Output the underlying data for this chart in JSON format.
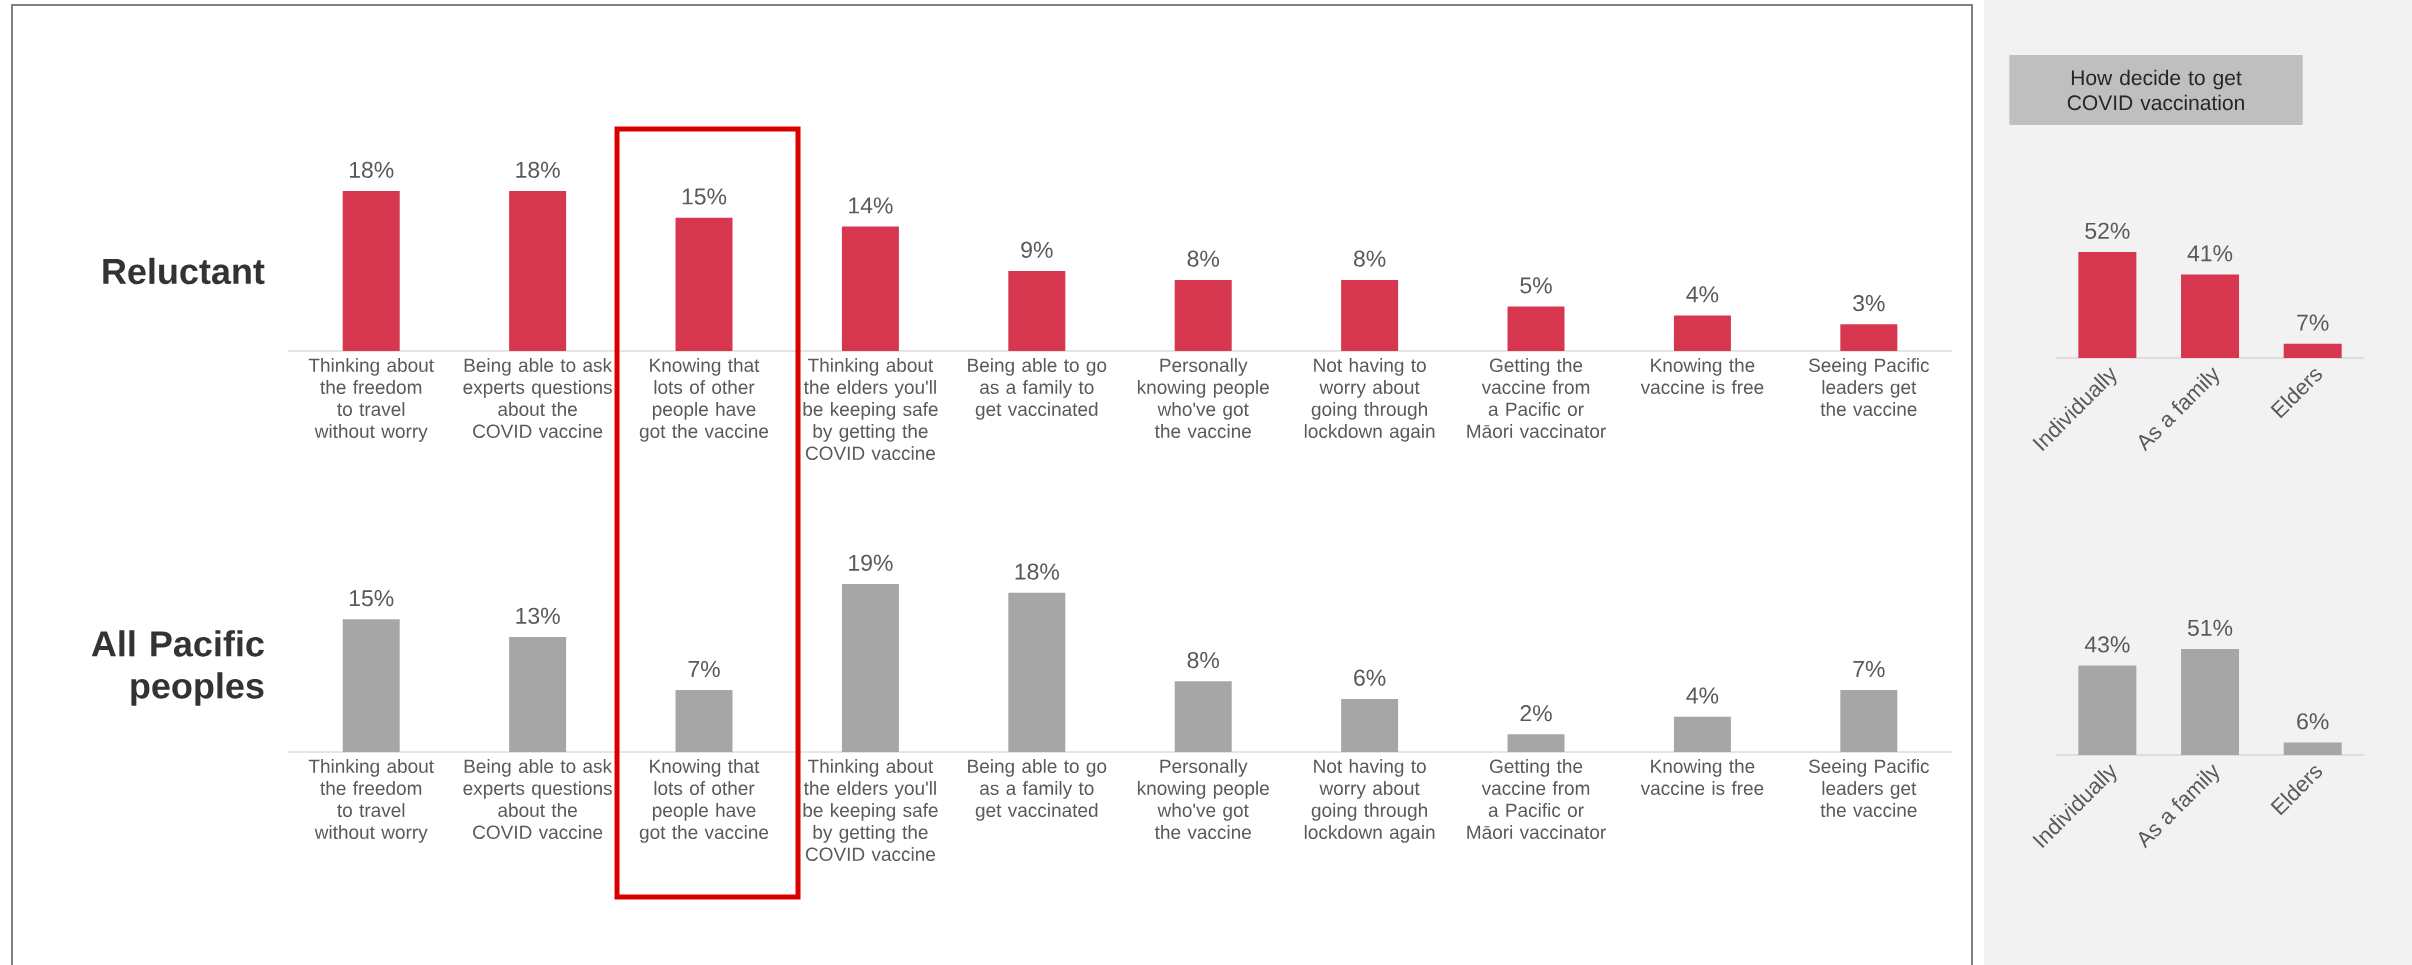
{
  "chart_data": [
    {
      "type": "bar",
      "title": "Reluctant",
      "categories": [
        "Thinking about the freedom to travel without worry",
        "Being able to ask experts questions about the COVID vaccine",
        "Knowing that lots of other people have got the vaccine",
        "Thinking about the elders you'll be keeping safe by getting the COVID vaccine",
        "Being able to go as a family to get vaccinated",
        "Personally knowing people who've got the vaccine",
        "Not having to worry about going through lockdown again",
        "Getting the vaccine from a Pacific or Māori vaccinator",
        "Knowing the vaccine is free",
        "Seeing Pacific leaders get the vaccine"
      ],
      "values": [
        18,
        18,
        15,
        14,
        9,
        8,
        8,
        5,
        4,
        3
      ],
      "value_labels": [
        "18%",
        "18%",
        "15%",
        "14%",
        "9%",
        "8%",
        "8%",
        "5%",
        "4%",
        "3%"
      ],
      "color": "#d6374e"
    },
    {
      "type": "bar",
      "title": "All Pacific peoples",
      "categories": [
        "Thinking about the freedom to travel without worry",
        "Being able to ask experts questions about the COVID vaccine",
        "Knowing that lots of other people have got the vaccine",
        "Thinking about the elders you'll be keeping safe by getting the COVID vaccine",
        "Being able to go as a family to get vaccinated",
        "Personally knowing people who've got the vaccine",
        "Not having to worry about going through lockdown again",
        "Getting the vaccine from a Pacific or Māori vaccinator",
        "Knowing the vaccine is free",
        "Seeing Pacific leaders get the vaccine"
      ],
      "values": [
        15,
        13,
        7,
        19,
        18,
        8,
        6,
        2,
        4,
        7
      ],
      "value_labels": [
        "15%",
        "13%",
        "7%",
        "19%",
        "18%",
        "8%",
        "6%",
        "2%",
        "4%",
        "7%"
      ],
      "color": "#a6a6a6"
    },
    {
      "type": "bar",
      "title": "How decide to get COVID vaccination",
      "categories": [
        "Individually",
        "As a family",
        "Elders"
      ],
      "values": [
        52,
        41,
        7
      ],
      "value_labels": [
        "52%",
        "41%",
        "7%"
      ],
      "color": "#d6374e"
    },
    {
      "type": "bar",
      "categories": [
        "Individually",
        "As a family",
        "Elders"
      ],
      "values": [
        43,
        51,
        6
      ],
      "value_labels": [
        "43%",
        "51%",
        "6%"
      ],
      "color": "#a6a6a6"
    }
  ]
}
